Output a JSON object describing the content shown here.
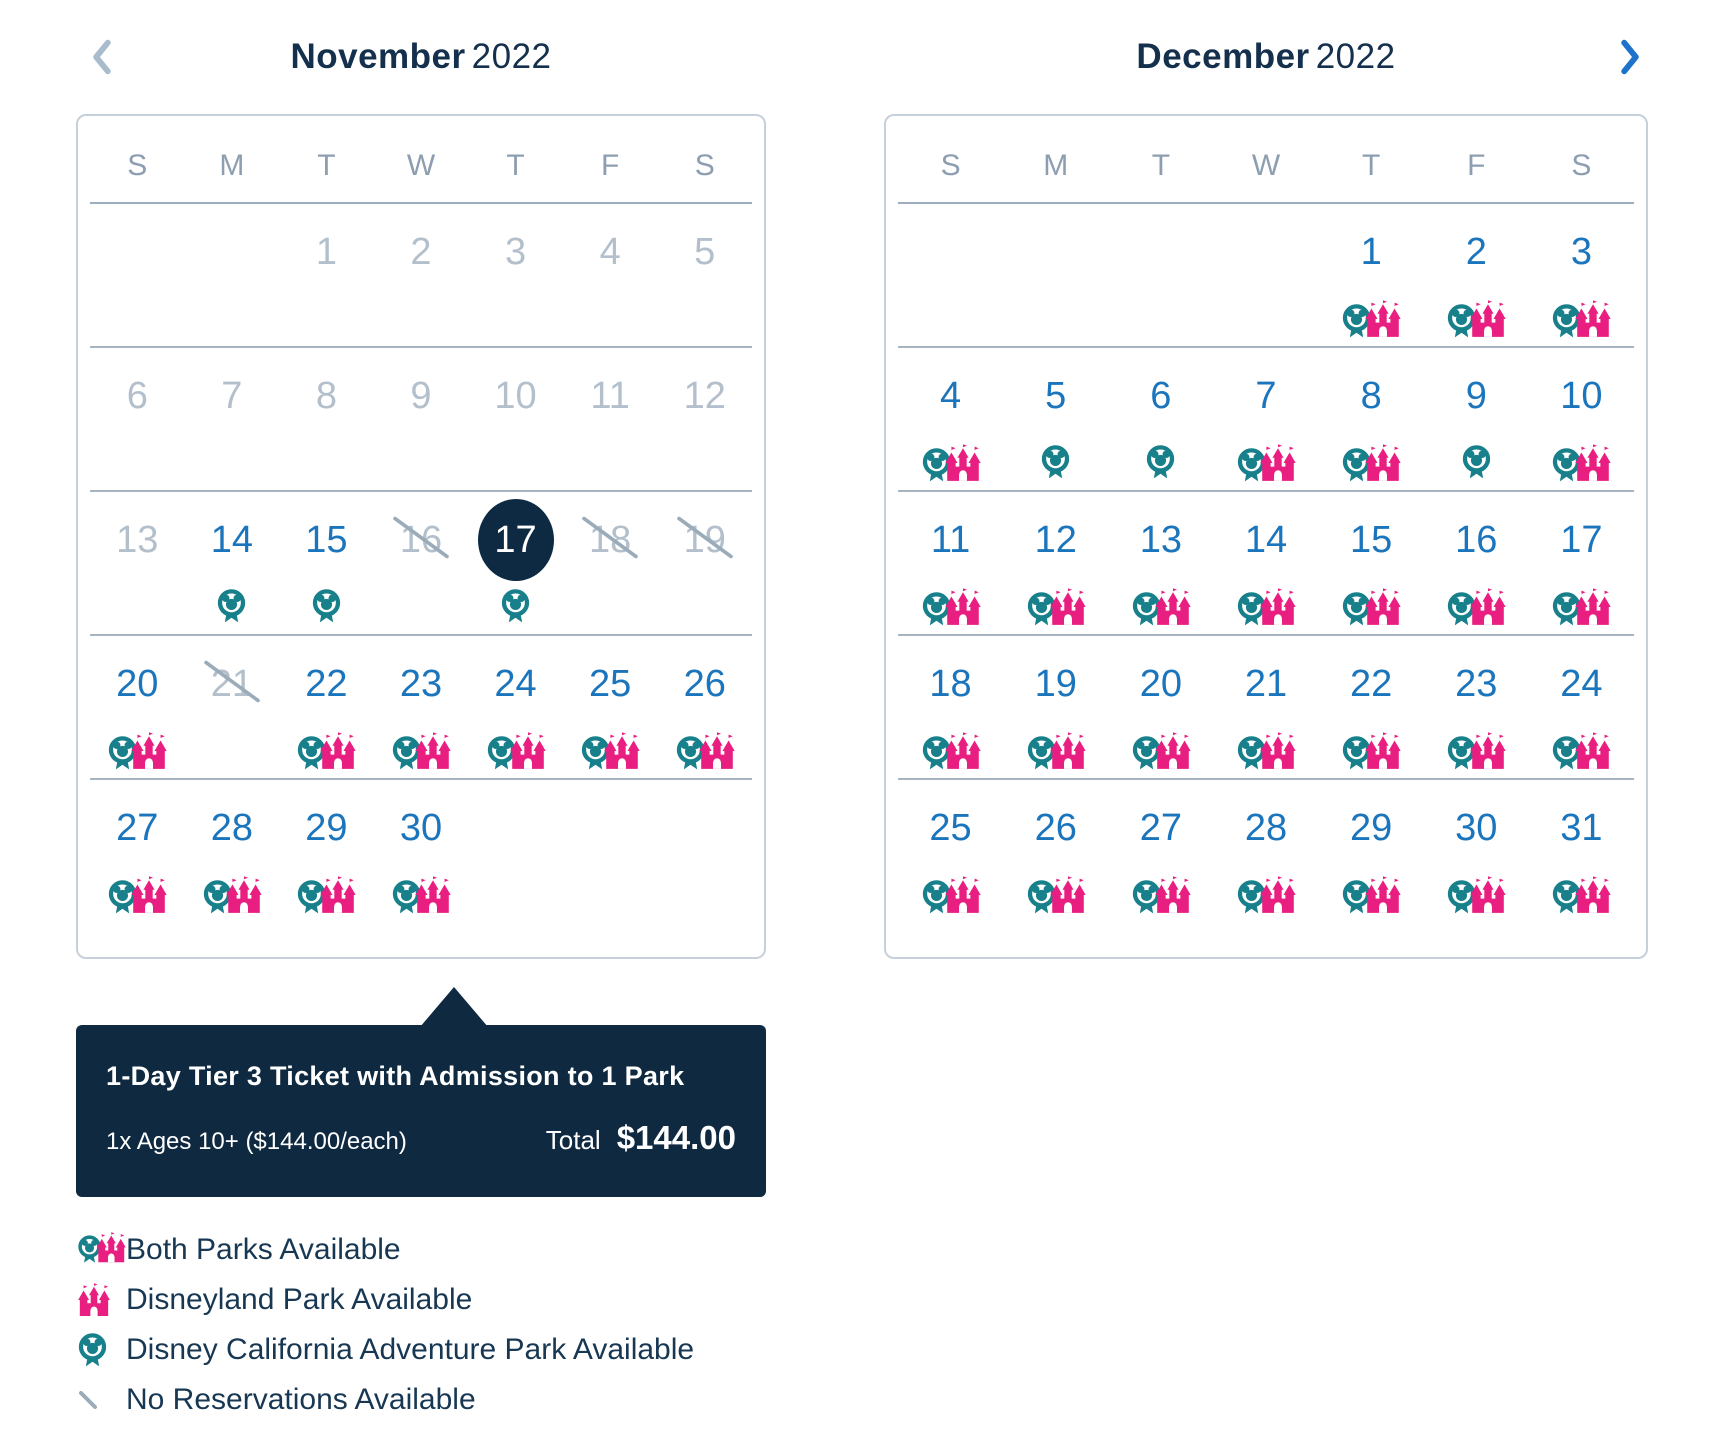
{
  "colors": {
    "teal": "#17808b",
    "pink": "#e81f81",
    "navy": "#14304c",
    "available_blue": "#1b75bd",
    "muted_gray": "#b3c0cc",
    "slash_gray": "#9aabb9",
    "selected_bg": "#0d2a42",
    "tooltip_bg": "#0e2940",
    "prev_arrow": "#a9bccd",
    "next_arrow": "#1d72cc"
  },
  "months": [
    {
      "name": "November",
      "year": "2022",
      "day_headers": [
        "S",
        "M",
        "T",
        "W",
        "T",
        "F",
        "S"
      ],
      "weeks": [
        [
          {
            "day": "",
            "state": "empty",
            "icon": "none"
          },
          {
            "day": "",
            "state": "empty",
            "icon": "none"
          },
          {
            "day": "1",
            "state": "past",
            "icon": "none"
          },
          {
            "day": "2",
            "state": "past",
            "icon": "none"
          },
          {
            "day": "3",
            "state": "past",
            "icon": "none"
          },
          {
            "day": "4",
            "state": "past",
            "icon": "none"
          },
          {
            "day": "5",
            "state": "past",
            "icon": "none"
          }
        ],
        [
          {
            "day": "6",
            "state": "past",
            "icon": "none"
          },
          {
            "day": "7",
            "state": "past",
            "icon": "none"
          },
          {
            "day": "8",
            "state": "past",
            "icon": "none"
          },
          {
            "day": "9",
            "state": "past",
            "icon": "none"
          },
          {
            "day": "10",
            "state": "past",
            "icon": "none"
          },
          {
            "day": "11",
            "state": "past",
            "icon": "none"
          },
          {
            "day": "12",
            "state": "past",
            "icon": "none"
          }
        ],
        [
          {
            "day": "13",
            "state": "past",
            "icon": "none"
          },
          {
            "day": "14",
            "state": "available",
            "icon": "dca"
          },
          {
            "day": "15",
            "state": "available",
            "icon": "dca"
          },
          {
            "day": "16",
            "state": "crossed",
            "icon": "none"
          },
          {
            "day": "17",
            "state": "selected",
            "icon": "dca"
          },
          {
            "day": "18",
            "state": "crossed",
            "icon": "none"
          },
          {
            "day": "19",
            "state": "crossed",
            "icon": "none"
          }
        ],
        [
          {
            "day": "20",
            "state": "available",
            "icon": "both"
          },
          {
            "day": "21",
            "state": "crossed",
            "icon": "none"
          },
          {
            "day": "22",
            "state": "available",
            "icon": "both"
          },
          {
            "day": "23",
            "state": "available",
            "icon": "both"
          },
          {
            "day": "24",
            "state": "available",
            "icon": "both"
          },
          {
            "day": "25",
            "state": "available",
            "icon": "both"
          },
          {
            "day": "26",
            "state": "available",
            "icon": "both"
          }
        ],
        [
          {
            "day": "27",
            "state": "available",
            "icon": "both"
          },
          {
            "day": "28",
            "state": "available",
            "icon": "both"
          },
          {
            "day": "29",
            "state": "available",
            "icon": "both"
          },
          {
            "day": "30",
            "state": "available",
            "icon": "both"
          },
          {
            "day": "",
            "state": "empty",
            "icon": "none"
          },
          {
            "day": "",
            "state": "empty",
            "icon": "none"
          },
          {
            "day": "",
            "state": "empty",
            "icon": "none"
          }
        ]
      ]
    },
    {
      "name": "December",
      "year": "2022",
      "day_headers": [
        "S",
        "M",
        "T",
        "W",
        "T",
        "F",
        "S"
      ],
      "weeks": [
        [
          {
            "day": "",
            "state": "empty",
            "icon": "none"
          },
          {
            "day": "",
            "state": "empty",
            "icon": "none"
          },
          {
            "day": "",
            "state": "empty",
            "icon": "none"
          },
          {
            "day": "",
            "state": "empty",
            "icon": "none"
          },
          {
            "day": "1",
            "state": "available",
            "icon": "both"
          },
          {
            "day": "2",
            "state": "available",
            "icon": "both"
          },
          {
            "day": "3",
            "state": "available",
            "icon": "both"
          }
        ],
        [
          {
            "day": "4",
            "state": "available",
            "icon": "both"
          },
          {
            "day": "5",
            "state": "available",
            "icon": "dca"
          },
          {
            "day": "6",
            "state": "available",
            "icon": "dca"
          },
          {
            "day": "7",
            "state": "available",
            "icon": "both"
          },
          {
            "day": "8",
            "state": "available",
            "icon": "both"
          },
          {
            "day": "9",
            "state": "available",
            "icon": "dca"
          },
          {
            "day": "10",
            "state": "available",
            "icon": "both"
          }
        ],
        [
          {
            "day": "11",
            "state": "available",
            "icon": "both"
          },
          {
            "day": "12",
            "state": "available",
            "icon": "both"
          },
          {
            "day": "13",
            "state": "available",
            "icon": "both"
          },
          {
            "day": "14",
            "state": "available",
            "icon": "both"
          },
          {
            "day": "15",
            "state": "available",
            "icon": "both"
          },
          {
            "day": "16",
            "state": "available",
            "icon": "both"
          },
          {
            "day": "17",
            "state": "available",
            "icon": "both"
          }
        ],
        [
          {
            "day": "18",
            "state": "available",
            "icon": "both"
          },
          {
            "day": "19",
            "state": "available",
            "icon": "both"
          },
          {
            "day": "20",
            "state": "available",
            "icon": "both"
          },
          {
            "day": "21",
            "state": "available",
            "icon": "both"
          },
          {
            "day": "22",
            "state": "available",
            "icon": "both"
          },
          {
            "day": "23",
            "state": "available",
            "icon": "both"
          },
          {
            "day": "24",
            "state": "available",
            "icon": "both"
          }
        ],
        [
          {
            "day": "25",
            "state": "available",
            "icon": "both"
          },
          {
            "day": "26",
            "state": "available",
            "icon": "both"
          },
          {
            "day": "27",
            "state": "available",
            "icon": "both"
          },
          {
            "day": "28",
            "state": "available",
            "icon": "both"
          },
          {
            "day": "29",
            "state": "available",
            "icon": "both"
          },
          {
            "day": "30",
            "state": "available",
            "icon": "both"
          },
          {
            "day": "31",
            "state": "available",
            "icon": "both"
          }
        ]
      ]
    }
  ],
  "tooltip": {
    "title": "1-Day Tier 3 Ticket with Admission to 1 Park",
    "quantity_line": "1x Ages 10+ ($144.00/each)",
    "total_label": "Total",
    "total_value": "$144.00"
  },
  "legend": [
    {
      "icon": "both",
      "label": "Both Parks Available"
    },
    {
      "icon": "castle",
      "label": "Disneyland Park Available"
    },
    {
      "icon": "dca",
      "label": "Disney California Adventure Park Available"
    },
    {
      "icon": "slash",
      "label": "No Reservations Available"
    }
  ]
}
